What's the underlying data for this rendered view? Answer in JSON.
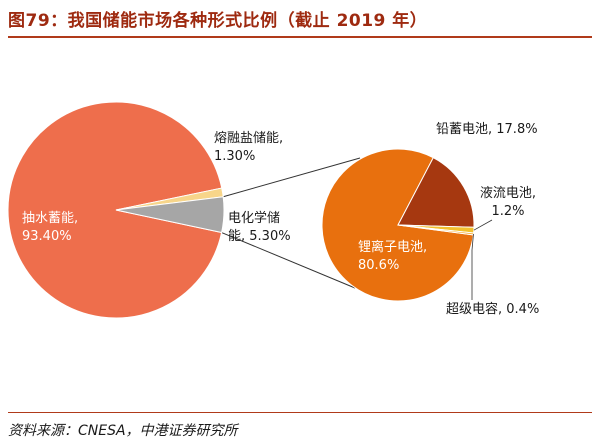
{
  "header": {
    "title": "图79：我国储能市场各种形式比例（截止 2019 年）"
  },
  "footer": {
    "source": "资料来源：CNESA，中港证券研究所"
  },
  "chart_data": [
    {
      "type": "pie",
      "slices": [
        {
          "name": "抽水蓄能",
          "value": 93.4,
          "label_lines": [
            "抽水蓄能,",
            "93.40%"
          ],
          "color": "#ee6e4c"
        },
        {
          "name": "熔融盐储能",
          "value": 1.3,
          "label_lines": [
            "熔融盐储能,",
            "1.30%"
          ],
          "color": "#f7d58a"
        },
        {
          "name": "电化学储能",
          "value": 5.3,
          "label_lines": [
            "电化学储",
            "能, 5.30%"
          ],
          "color": "#a6a6a6"
        }
      ]
    },
    {
      "type": "pie",
      "slices": [
        {
          "name": "锂离子电池",
          "value": 80.6,
          "label_lines": [
            "锂离子电池,",
            "80.6%"
          ],
          "color": "#e8700e"
        },
        {
          "name": "铅蓄电池",
          "value": 17.8,
          "label_lines": [
            "铅蓄电池, 17.8%"
          ],
          "color": "#a63810"
        },
        {
          "name": "液流电池",
          "value": 1.2,
          "label_lines": [
            "液流电池,",
            "1.2%"
          ],
          "color": "#f2c12e"
        },
        {
          "name": "超级电容",
          "value": 0.4,
          "label_lines": [
            "超级电容, 0.4%"
          ],
          "color": "#f5a524"
        }
      ]
    }
  ]
}
